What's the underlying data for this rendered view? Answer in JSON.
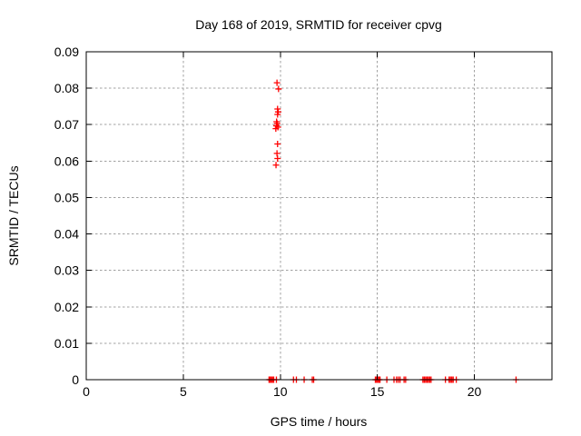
{
  "window": {
    "background_color": "#ffffff",
    "text_color": "#000000"
  },
  "chart_data": {
    "type": "scatter",
    "title": "Day 168 of 2019, SRMTID for receiver cpvg",
    "xlabel": "GPS time / hours",
    "ylabel": "SRMTID / TECUs",
    "xlim": [
      0,
      24
    ],
    "ylim": [
      0,
      0.09
    ],
    "xticks": [
      0,
      5,
      10,
      15,
      20
    ],
    "xtick_labels": [
      "0",
      "5",
      "10",
      "15",
      "20"
    ],
    "yticks": [
      0,
      0.01,
      0.02,
      0.03,
      0.04,
      0.05,
      0.06,
      0.07,
      0.08,
      0.09
    ],
    "ytick_labels": [
      "0",
      "0.01",
      "0.02",
      "0.03",
      "0.04",
      "0.05",
      "0.06",
      "0.07",
      "0.08",
      "0.09"
    ],
    "grid": true,
    "grid_style": "dashed",
    "grid_color": "#a0a0a0",
    "axis_color": "#000000",
    "legend": "none",
    "marker": {
      "shape": "plus",
      "color": "#ff0000",
      "size": 7
    },
    "series": [
      {
        "name": "SRMTID",
        "points": [
          [
            9.83,
            0.0815
          ],
          [
            9.91,
            0.0798
          ],
          [
            9.86,
            0.0743
          ],
          [
            9.89,
            0.0735
          ],
          [
            9.86,
            0.0728
          ],
          [
            9.81,
            0.0708
          ],
          [
            9.84,
            0.0703
          ],
          [
            9.8,
            0.0697
          ],
          [
            9.88,
            0.0693
          ],
          [
            9.77,
            0.0689
          ],
          [
            9.86,
            0.0647
          ],
          [
            9.83,
            0.0621
          ],
          [
            9.86,
            0.0607
          ],
          [
            9.78,
            0.0589
          ],
          [
            9.42,
            0
          ],
          [
            9.48,
            0
          ],
          [
            9.54,
            0
          ],
          [
            9.6,
            0
          ],
          [
            9.66,
            0
          ],
          [
            9.8,
            0
          ],
          [
            10.68,
            0
          ],
          [
            10.83,
            0
          ],
          [
            11.23,
            0
          ],
          [
            11.65,
            0
          ],
          [
            11.72,
            0
          ],
          [
            14.9,
            0
          ],
          [
            14.96,
            0
          ],
          [
            15.02,
            0
          ],
          [
            15.08,
            0
          ],
          [
            15.14,
            0
          ],
          [
            15.49,
            0
          ],
          [
            15.86,
            0
          ],
          [
            15.99,
            0
          ],
          [
            16.08,
            0
          ],
          [
            16.17,
            0
          ],
          [
            16.38,
            0
          ],
          [
            16.46,
            0
          ],
          [
            17.35,
            0
          ],
          [
            17.42,
            0
          ],
          [
            17.49,
            0
          ],
          [
            17.56,
            0
          ],
          [
            17.63,
            0
          ],
          [
            17.7,
            0
          ],
          [
            17.77,
            0
          ],
          [
            18.51,
            0
          ],
          [
            18.7,
            0
          ],
          [
            18.77,
            0
          ],
          [
            18.84,
            0
          ],
          [
            18.91,
            0
          ],
          [
            19.07,
            0
          ],
          [
            22.15,
            0
          ]
        ]
      }
    ]
  }
}
